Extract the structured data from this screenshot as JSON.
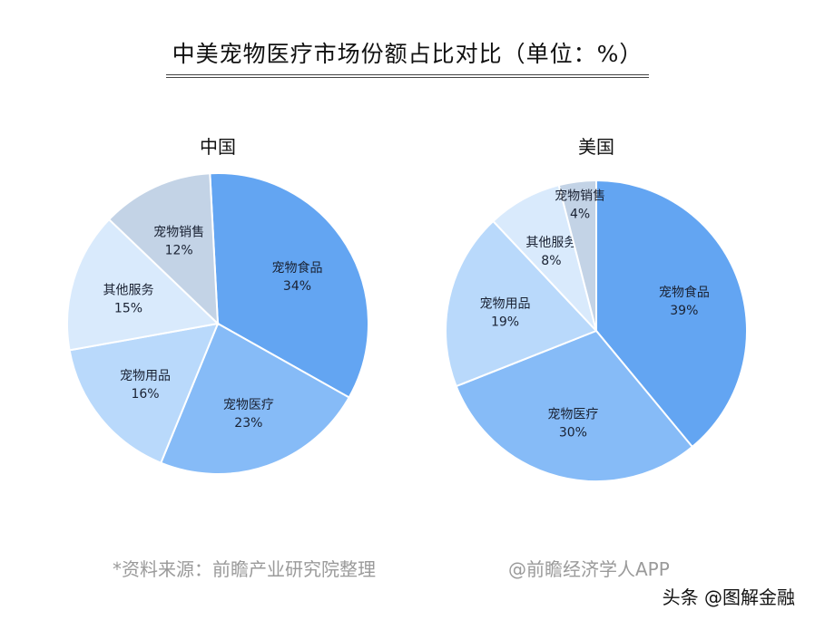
{
  "title": "中美宠物医疗市场份额占比对比（单位：%）",
  "footer": {
    "source": "*资料来源：前瞻产业研究院整理",
    "credit": "@前瞻经济学人APP",
    "watermark": "头条 @图解金融"
  },
  "colors": {
    "宠物食品": "#63a5f2",
    "宠物医疗": "#86bbf7",
    "宠物用品": "#b9d9fb",
    "其他服务": "#d9eafc",
    "宠物销售": "#c3d3e6"
  },
  "chart_data": [
    {
      "type": "pie",
      "title": "中国",
      "categories": [
        "宠物食品",
        "宠物医疗",
        "宠物用品",
        "其他服务",
        "宠物销售"
      ],
      "values": [
        34,
        23,
        16,
        15,
        12
      ],
      "unit": "%",
      "start_angle_deg": -3,
      "center": [
        240,
        357
      ],
      "radius": 166
    },
    {
      "type": "pie",
      "title": "美国",
      "categories": [
        "宠物食品",
        "宠物医疗",
        "宠物用品",
        "其他服务",
        "宠物销售"
      ],
      "values": [
        39,
        30,
        19,
        8,
        4
      ],
      "unit": "%",
      "start_angle_deg": 0,
      "center": [
        657,
        365
      ],
      "radius": 166
    }
  ]
}
